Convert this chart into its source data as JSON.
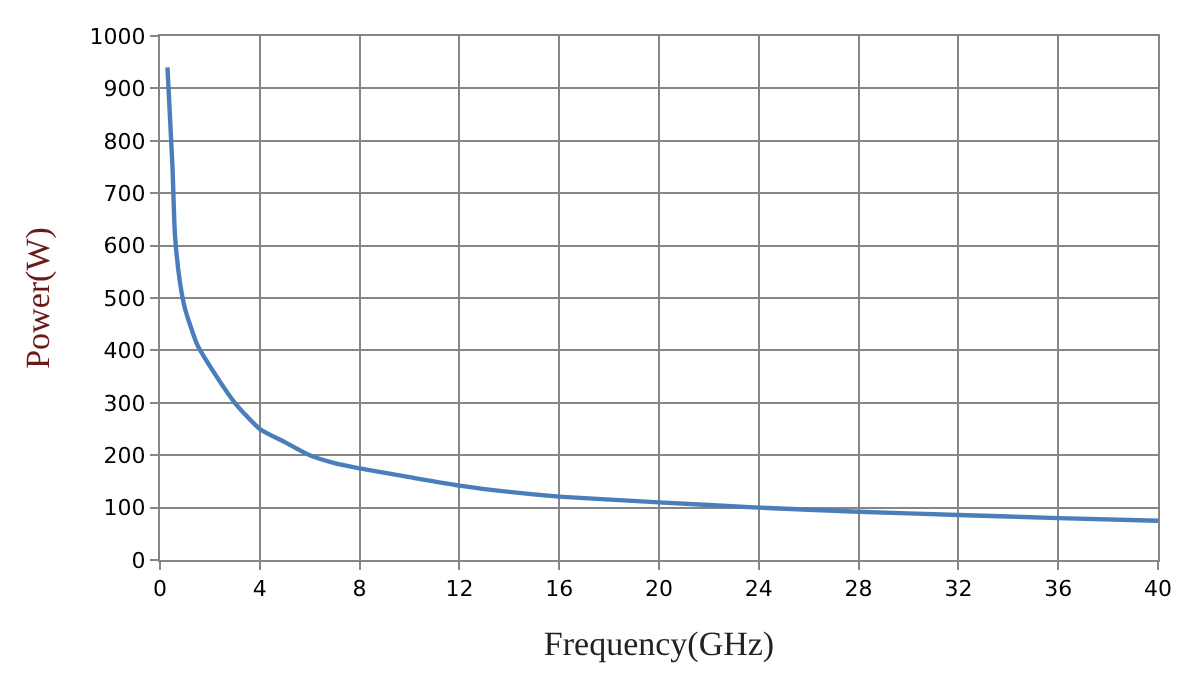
{
  "chart_data": {
    "type": "line",
    "xlabel": "Frequency(GHz)",
    "ylabel": "Power(W)",
    "x": [
      0.3,
      0.5,
      0.6,
      0.8,
      1,
      1.5,
      2,
      3,
      4,
      5,
      6,
      7,
      8,
      10,
      12,
      14,
      16,
      20,
      24,
      28,
      32,
      36,
      40
    ],
    "series": [
      {
        "color": "#4a7ebb",
        "values": [
          940,
          750,
          620,
          530,
          480,
          410,
          370,
          300,
          250,
          225,
          200,
          185,
          175,
          158,
          142,
          130,
          121,
          110,
          100,
          92,
          86,
          80,
          75
        ]
      }
    ],
    "xlim": [
      0,
      40
    ],
    "xticks": [
      0,
      4,
      8,
      12,
      16,
      20,
      24,
      28,
      32,
      36,
      40
    ],
    "ylim": [
      0,
      1000
    ],
    "yticks": [
      0,
      100,
      200,
      300,
      400,
      500,
      600,
      700,
      800,
      900,
      1000
    ],
    "grid": true,
    "marker": "none",
    "line_style": "solid"
  }
}
